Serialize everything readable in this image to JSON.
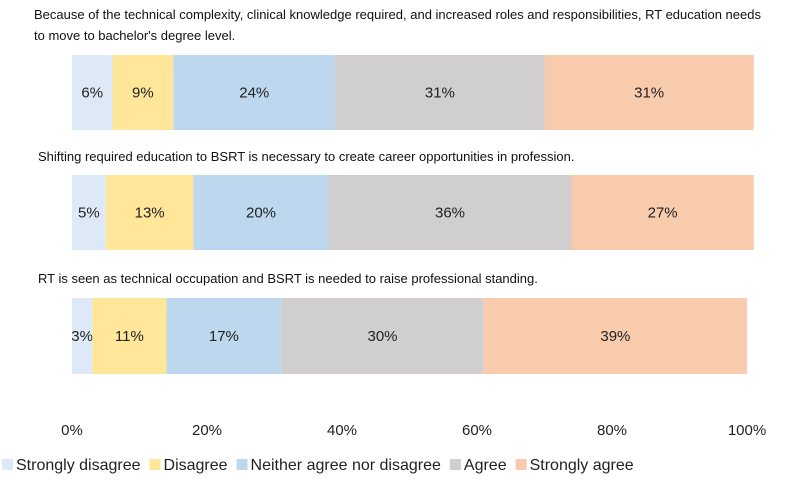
{
  "chart_data": {
    "type": "stacked-barh",
    "categories": [
      "Because of the technical complexity, clinical knowledge required, and increased roles and responsibilities, RT education needs to move to bachelor's degree level.",
      "Shifting required education to BSRT is necessary to create career opportunities in profession.",
      "RT is seen as technical occupation and BSRT is needed to raise professional standing."
    ],
    "series": [
      {
        "name": "Strongly disagree",
        "color": "#dde9f6",
        "values": [
          6,
          5,
          3
        ],
        "value_labels": [
          "6%",
          "5%",
          "3%"
        ]
      },
      {
        "name": "Disagree",
        "color": "#ffe699",
        "values": [
          9,
          13,
          11
        ],
        "value_labels": [
          "9%",
          "13%",
          "11%"
        ]
      },
      {
        "name": "Neither agree nor disagree",
        "color": "#bdd7ee",
        "values": [
          24,
          20,
          17
        ],
        "value_labels": [
          "24%",
          "20%",
          "17%"
        ]
      },
      {
        "name": "Agree",
        "color": "#d0cece",
        "values": [
          31,
          36,
          30
        ],
        "value_labels": [
          "31%",
          "36%",
          "30%"
        ]
      },
      {
        "name": "Strongly agree",
        "color": "#f8cbad",
        "values": [
          31,
          27,
          39
        ],
        "value_labels": [
          "31%",
          "27%",
          "39%"
        ]
      }
    ],
    "xlim": [
      0,
      100
    ],
    "xticks": [
      {
        "value": 0,
        "label": "0%"
      },
      {
        "value": 20,
        "label": "20%"
      },
      {
        "value": 40,
        "label": "40%"
      },
      {
        "value": 60,
        "label": "60%"
      },
      {
        "value": 80,
        "label": "80%"
      },
      {
        "value": 100,
        "label": "100%"
      }
    ],
    "grid": false,
    "legend": "bottom"
  }
}
